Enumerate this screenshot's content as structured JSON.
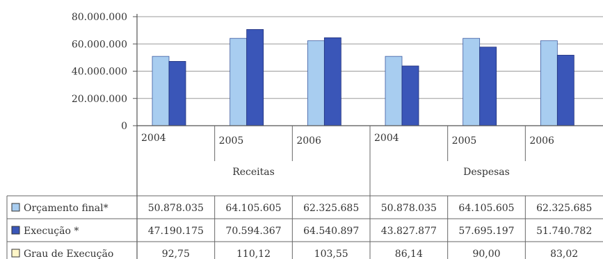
{
  "chart_data": {
    "type": "bar",
    "title": "",
    "xlabel": "",
    "ylabel": "",
    "ylim": [
      0,
      80000000
    ],
    "y_ticks": [
      "80.000.000",
      "60.000.000",
      "40.000.000",
      "20.000.000",
      "0"
    ],
    "groups": [
      "Receitas",
      "Despesas"
    ],
    "categories": [
      "2004",
      "2005",
      "2006",
      "2004",
      "2005",
      "2006"
    ],
    "grid": true,
    "legend": "table-left",
    "colors": {
      "orcamento": "#a8cdf0",
      "execucao": "#3a56b8",
      "grau": "#fff6c8"
    },
    "series": [
      {
        "name": "Orçamento final*",
        "values": [
          50878035,
          64105605,
          62325685,
          50878035,
          64105605,
          62325685
        ],
        "labels": [
          "50.878.035",
          "64.105.605",
          "62.325.685",
          "50.878.035",
          "64.105.605",
          "62.325.685"
        ]
      },
      {
        "name": "Execução *",
        "values": [
          47190175,
          70594367,
          64540897,
          43827877,
          57695197,
          51740782
        ],
        "labels": [
          "47.190.175",
          "70.594.367",
          "64.540.897",
          "43.827.877",
          "57.695.197",
          "51.740.782"
        ]
      }
    ],
    "table_rows": [
      {
        "name": "Grau de Execução",
        "labels": [
          "92,75",
          "110,12",
          "103,55",
          "86,14",
          "90,00",
          "83,02"
        ]
      }
    ]
  }
}
